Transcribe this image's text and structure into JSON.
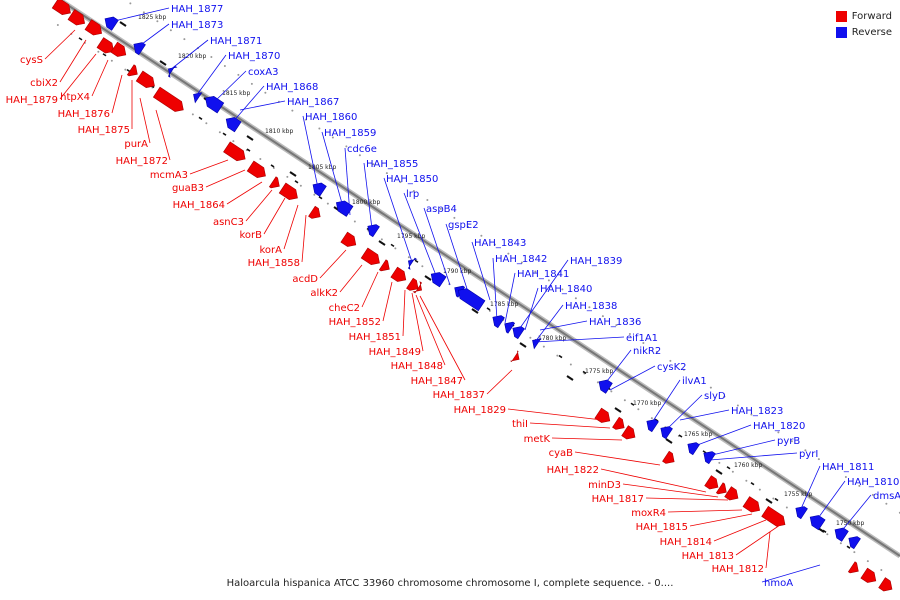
{
  "caption": "Haloarcula hispanica ATCC 33960 chromosome chromosome I, complete sequence. - 0....",
  "legend": {
    "forward_label": "Forward",
    "reverse_label": "Reverse",
    "forward_color": "#ee0000",
    "reverse_color": "#1010ee"
  },
  "colors": {
    "forward": "#ee0000",
    "reverse": "#1010ee",
    "backbone": "#888888",
    "tick": "#111111"
  },
  "scale_labels": [
    "1825 kbp",
    "1820 kbp",
    "1815 kbp",
    "1810 kbp",
    "1805 kbp",
    "1800 kbp",
    "1795 kbp",
    "1790 kbp",
    "1785 kbp",
    "1780 kbp",
    "1775 kbp",
    "1770 kbp",
    "1765 kbp",
    "1760 kbp",
    "1755 kbp",
    "1750 kbp"
  ],
  "reverse_genes": [
    "HAH_1877",
    "HAH_1873",
    "HAH_1871",
    "HAH_1870",
    "coxA3",
    "HAH_1868",
    "HAH_1867",
    "HAH_1860",
    "HAH_1859",
    "cdc6e",
    "HAH_1855",
    "HAH_1850",
    "lrp",
    "aspB4",
    "gspE2",
    "HAH_1843",
    "HAH_1842",
    "HAH_1841",
    "HAH_1839",
    "HAH_1840",
    "HAH_1838",
    "HAH_1836",
    "eif1A1",
    "nikR2",
    "cysK2",
    "ilvA1",
    "slyD",
    "HAH_1823",
    "HAH_1820",
    "pyrB",
    "pyrI",
    "HAH_1811",
    "HAH_1810",
    "dmsA",
    "hmoA"
  ],
  "forward_genes": [
    "cysS",
    "cbiX2",
    "HAH_1879",
    "htpX4",
    "HAH_1876",
    "HAH_1875",
    "purA",
    "HAH_1872",
    "mcmA3",
    "guaB3",
    "HAH_1864",
    "asnC3",
    "korB",
    "korA",
    "HAH_1858",
    "acdD",
    "alkK2",
    "cheC2",
    "HAH_1852",
    "HAH_1851",
    "HAH_1849",
    "HAH_1848",
    "HAH_1847",
    "HAH_1837",
    "HAH_1829",
    "thiI",
    "metK",
    "cyaB",
    "HAH_1822",
    "minD3",
    "HAH_1817",
    "moxR4",
    "HAH_1815",
    "HAH_1814",
    "HAH_1813",
    "HAH_1812"
  ]
}
